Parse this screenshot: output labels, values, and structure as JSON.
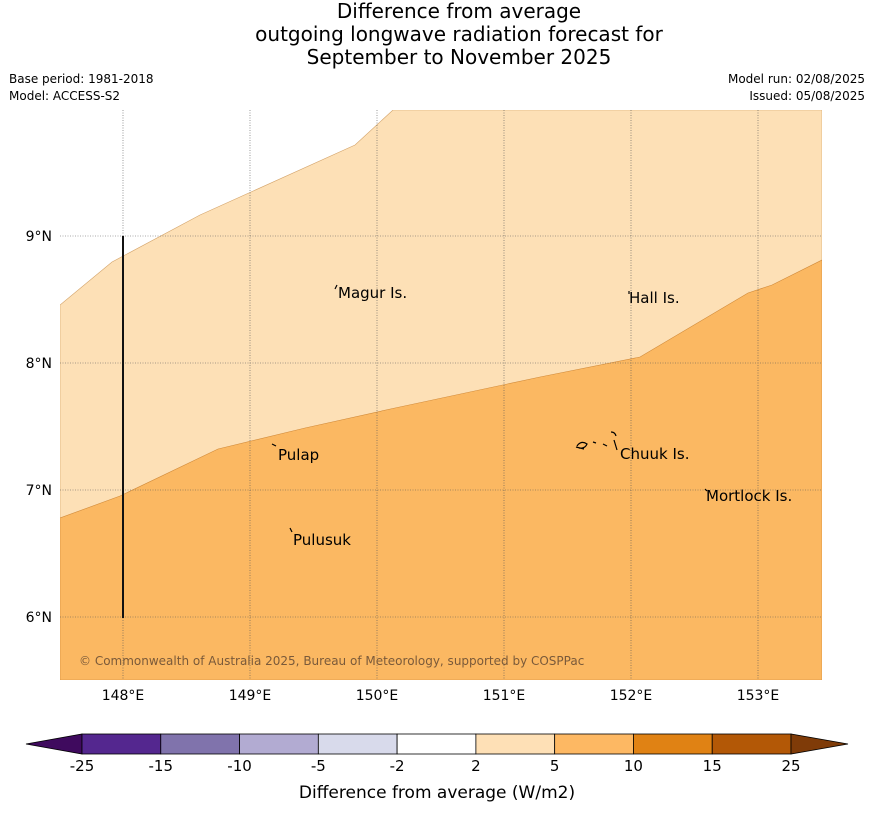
{
  "title": {
    "line1": "Difference from average",
    "line2": "outgoing longwave radiation forecast for",
    "line3": "September to November 2025"
  },
  "meta": {
    "base_period": "Base period: 1981-2018",
    "model": "Model: ACCESS-S2",
    "model_run": "Model run: 02/08/2025",
    "issued": "Issued: 05/08/2025"
  },
  "map": {
    "lon_ticks": [
      "148°E",
      "149°E",
      "150°E",
      "151°E",
      "152°E",
      "153°E"
    ],
    "lat_ticks": [
      "9°N",
      "8°N",
      "7°N",
      "6°N"
    ],
    "places": [
      "Magur Is.",
      "Hall Is.",
      "Pulap",
      "Chuuk Is.",
      "Mortlock Is.",
      "Pulusuk"
    ],
    "copyright": "© Commonwealth of Australia 2025, Bureau of Meteorology, supported by COSPPac",
    "fill_colors": {
      "light": "#fde0b6",
      "mid": "#fbb862"
    }
  },
  "colorbar": {
    "ticks": [
      "-25",
      "-15",
      "-10",
      "-5",
      "-2",
      "2",
      "5",
      "10",
      "15",
      "25"
    ],
    "colors": [
      "#3f0a5e",
      "#54278f",
      "#8073ac",
      "#b2abd2",
      "#d8daeb",
      "#ffffff",
      "#fee0b6",
      "#fdb863",
      "#e08214",
      "#b35806",
      "#7f3b08"
    ],
    "label": "Difference from average (W/m2)"
  }
}
